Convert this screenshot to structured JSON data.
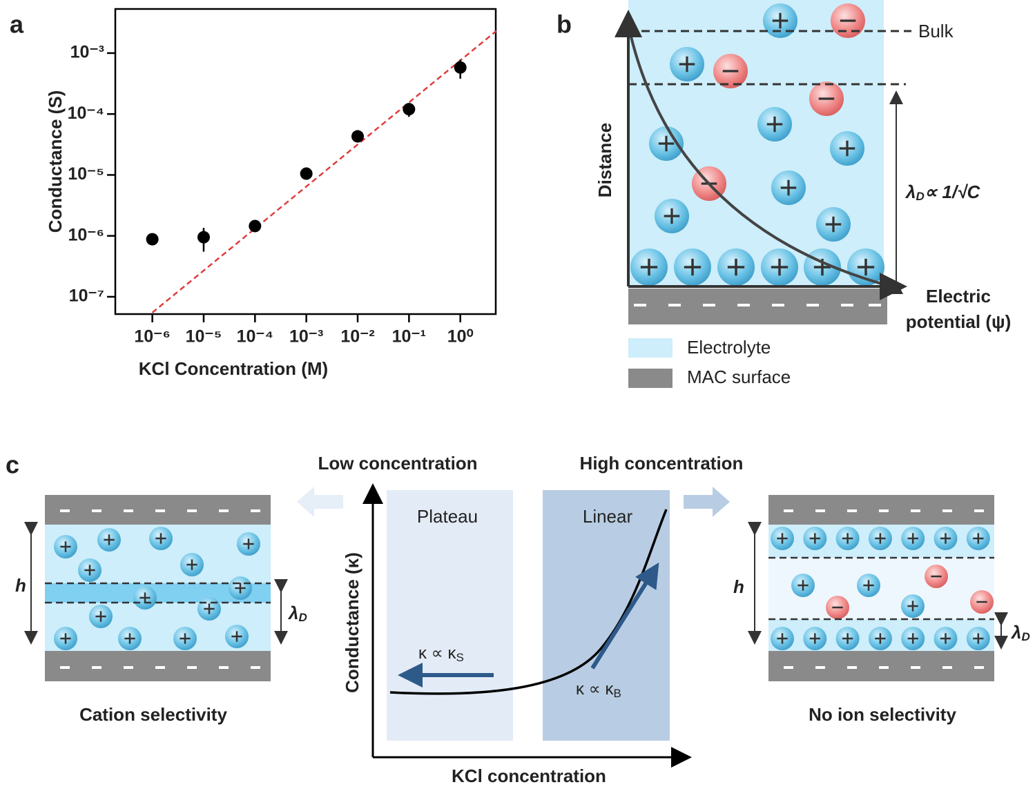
{
  "chart_data": {
    "type": "scatter",
    "ylabel": "Conductance (S)",
    "xlabel": "KCl Concentration (M)",
    "x": [
      1e-06,
      1e-05,
      0.0001,
      0.001,
      0.01,
      0.1,
      1
    ],
    "values": [
      8.8e-07,
      9.5e-07,
      1.45e-06,
      1.05e-05,
      4.3e-05,
      0.00012,
      0.00058
    ],
    "errors": [
      8e-08,
      4e-07,
      1.2e-07,
      1e-06,
      4e-06,
      3e-05,
      0.0002
    ],
    "color": "#000000",
    "fit_line": {
      "x": [
        1e-06,
        5
      ],
      "y": [
        5.5e-08,
        0.0023
      ],
      "color": "#e03c3c"
    },
    "xscale": "log",
    "yscale": "log",
    "xlim": [
      1.9e-07,
      4.9
    ],
    "ylim": [
      5.2e-08,
      0.0053
    ],
    "xticks": [
      {
        "value": 1e-06,
        "label": "10⁻⁶"
      },
      {
        "value": 1e-05,
        "label": "10⁻⁵"
      },
      {
        "value": 0.0001,
        "label": "10⁻⁴"
      },
      {
        "value": 0.001,
        "label": "10⁻³"
      },
      {
        "value": 0.01,
        "label": "10⁻²"
      },
      {
        "value": 0.1,
        "label": "10⁻¹"
      },
      {
        "value": 1,
        "label": "10⁰"
      }
    ],
    "yticks": [
      {
        "value": 1e-07,
        "label": "10⁻⁷"
      },
      {
        "value": 1e-06,
        "label": "10⁻⁶"
      },
      {
        "value": 1e-05,
        "label": "10⁻⁵"
      },
      {
        "value": 0.0001,
        "label": "10⁻⁴"
      },
      {
        "value": 0.001,
        "label": "10⁻³"
      }
    ]
  },
  "panel_labels": [
    "a",
    "b",
    "c"
  ],
  "panel_b": {
    "bulk": "Bulk",
    "ylabel": "Distance",
    "xlabel": [
      "Electric",
      "potential (ψ)"
    ],
    "debye": {
      "symbol": "λ",
      "subscript": "D",
      "relation": "∝ 1/√C"
    },
    "legend": [
      "Electrolyte",
      "MAC surface"
    ]
  },
  "panel_c": {
    "low": "Low concentration",
    "high": "High concentration",
    "plateau": "Plateau",
    "linear": "Linear",
    "ylabel": "Conductance (κ)",
    "xlabel": "KCl concentration",
    "low_law": {
      "text": "κ ∝ κ",
      "subscript": "S"
    },
    "high_law": {
      "text": "κ ∝ κ",
      "subscript": "B"
    },
    "left_caption": "Cation selectivity",
    "right_caption": "No ion selectivity",
    "h": "h",
    "debye_symbol": "λ",
    "debye_subscript": "D"
  }
}
